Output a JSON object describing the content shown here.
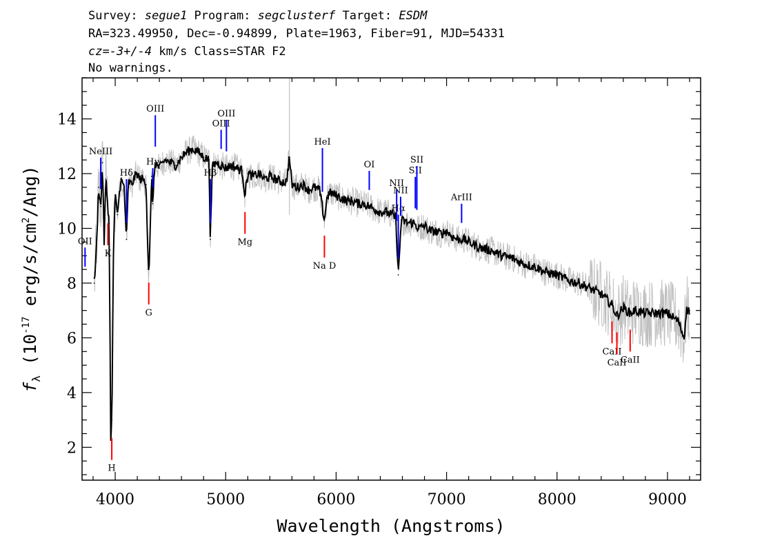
{
  "header": {
    "line1": [
      {
        "text": "Survey: ",
        "italic": false
      },
      {
        "text": "segue1",
        "italic": true
      },
      {
        "text": " Program: ",
        "italic": false
      },
      {
        "text": "segclusterf",
        "italic": true
      },
      {
        "text": " Target: ",
        "italic": false
      },
      {
        "text": "ESDM",
        "italic": true
      }
    ],
    "line2": "RA=323.49950, Dec=-0.94899, Plate=1963, Fiber=91, MJD=54331",
    "line3": [
      {
        "text": "cz=-3+/-4",
        "italic": true
      },
      {
        "text": " km/s Class=STAR F2",
        "italic": false
      }
    ],
    "line4": "No warnings."
  },
  "chart_data": {
    "type": "line",
    "xlabel": "Wavelength (Angstroms)",
    "ylabel": "f_λ (10^-17 erg/s/cm^2/Ang)",
    "ylabel_parts": {
      "f": "f",
      "sub": "λ",
      "mid": "(10",
      "exp1": "-17",
      "mid2": " erg/s/cm",
      "exp2": "2",
      "end": "/Ang)"
    },
    "xlim": [
      3700,
      9300
    ],
    "ylim": [
      0.8,
      15.5
    ],
    "x_ticks": [
      4000,
      5000,
      6000,
      7000,
      8000,
      9000
    ],
    "x_tick_labels": [
      "4000",
      "5000",
      "6000",
      "7000",
      "8000",
      "9000"
    ],
    "y_ticks": [
      2,
      4,
      6,
      8,
      10,
      12,
      14
    ],
    "y_tick_labels": [
      "2",
      "4",
      "6",
      "8",
      "10",
      "12",
      "14"
    ],
    "grid": false,
    "colors": {
      "flux": "#000000",
      "error": "#c0c0c0",
      "emission": "#0000ff",
      "absorption": "#ff0000"
    },
    "flux": {
      "x": [
        3810,
        3830,
        3850,
        3870,
        3885,
        3900,
        3915,
        3930,
        3945,
        3960,
        3970,
        3985,
        4000,
        4020,
        4050,
        4080,
        4102,
        4120,
        4150,
        4180,
        4200,
        4220,
        4250,
        4280,
        4300,
        4310,
        4330,
        4340,
        4360,
        4400,
        4450,
        4500,
        4550,
        4600,
        4650,
        4700,
        4750,
        4800,
        4850,
        4861,
        4880,
        4920,
        4960,
        5000,
        5050,
        5100,
        5150,
        5175,
        5200,
        5250,
        5300,
        5350,
        5400,
        5450,
        5500,
        5550,
        5577,
        5600,
        5650,
        5700,
        5750,
        5800,
        5850,
        5893,
        5920,
        5950,
        6000,
        6050,
        6100,
        6150,
        6200,
        6250,
        6300,
        6350,
        6400,
        6450,
        6500,
        6540,
        6563,
        6590,
        6650,
        6700,
        6750,
        6800,
        6850,
        6900,
        6950,
        7000,
        7050,
        7100,
        7150,
        7200,
        7300,
        7400,
        7500,
        7600,
        7700,
        7800,
        7900,
        8000,
        8100,
        8200,
        8300,
        8400,
        8498,
        8542,
        8600,
        8662,
        8700,
        8800,
        8900,
        9000,
        9100,
        9150,
        9170,
        9200
      ],
      "y": [
        8.0,
        9.2,
        11.5,
        10.8,
        12.4,
        9.5,
        11.8,
        11.0,
        10.2,
        2.4,
        3.0,
        9.5,
        11.2,
        10.5,
        11.8,
        11.5,
        9.6,
        11.7,
        11.6,
        11.9,
        12.0,
        11.8,
        11.8,
        11.6,
        8.5,
        8.8,
        11.9,
        10.9,
        12.4,
        12.2,
        12.5,
        12.4,
        12.3,
        12.6,
        12.8,
        12.9,
        12.8,
        12.6,
        12.5,
        9.6,
        12.3,
        12.4,
        12.3,
        12.2,
        12.3,
        12.2,
        12.1,
        11.2,
        12.0,
        11.9,
        12.0,
        11.8,
        11.9,
        11.8,
        11.7,
        11.7,
        12.6,
        11.6,
        11.5,
        11.6,
        11.4,
        11.5,
        11.4,
        10.3,
        11.2,
        11.3,
        11.2,
        11.1,
        11.0,
        11.0,
        10.9,
        10.9,
        10.8,
        10.7,
        10.6,
        10.6,
        10.5,
        10.4,
        8.3,
        10.3,
        10.2,
        10.2,
        10.0,
        10.1,
        9.9,
        9.9,
        9.8,
        9.9,
        9.7,
        9.6,
        9.6,
        9.5,
        9.3,
        9.2,
        9.0,
        8.9,
        8.7,
        8.6,
        8.4,
        8.3,
        8.1,
        8.0,
        7.8,
        7.6,
        7.2,
        6.8,
        7.1,
        6.9,
        7.0,
        6.9,
        6.9,
        6.9,
        6.6,
        6.0,
        7.0,
        7.0
      ]
    },
    "emission_lines": [
      {
        "label": "OII",
        "x": 3727
      },
      {
        "label": "NeIII",
        "x": 3869
      },
      {
        "label": "Hδ",
        "x": 4102
      },
      {
        "label": "Hγ",
        "x": 4340
      },
      {
        "label": "OIII",
        "x": 4363
      },
      {
        "label": "Hβ",
        "x": 4861
      },
      {
        "label": "OIII",
        "x": 4959
      },
      {
        "label": "OIII",
        "x": 5007
      },
      {
        "label": "HeI",
        "x": 5876
      },
      {
        "label": "OI",
        "x": 6300
      },
      {
        "label": "NII",
        "x": 6548
      },
      {
        "label": "Hα",
        "x": 6563
      },
      {
        "label": "NII",
        "x": 6584
      },
      {
        "label": "SII",
        "x": 6717
      },
      {
        "label": "SII",
        "x": 6731
      },
      {
        "label": "ArIII",
        "x": 7136
      }
    ],
    "absorption_lines": [
      {
        "label": "K",
        "x": 3934
      },
      {
        "label": "H",
        "x": 3969
      },
      {
        "label": "G",
        "x": 4304
      },
      {
        "label": "Mg",
        "x": 5175
      },
      {
        "label": "Na D",
        "x": 5894
      },
      {
        "label": "CaII",
        "x": 8498
      },
      {
        "label": "CaII",
        "x": 8542
      },
      {
        "label": "CaII",
        "x": 8662
      }
    ]
  }
}
